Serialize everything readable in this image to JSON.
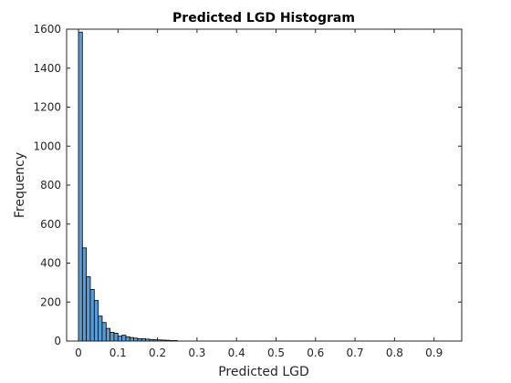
{
  "chart_data": {
    "type": "bar",
    "title": "Predicted LGD Histogram",
    "xlabel": "Predicted LGD",
    "ylabel": "Frequency",
    "xlim": [
      -0.03,
      0.97
    ],
    "ylim": [
      0,
      1600
    ],
    "xticks": [
      0,
      0.1,
      0.2,
      0.3,
      0.4,
      0.5,
      0.6,
      0.7,
      0.8,
      0.9
    ],
    "xtick_labels": [
      "0",
      "0.1",
      "0.2",
      "0.3",
      "0.4",
      "0.5",
      "0.6",
      "0.7",
      "0.8",
      "0.9"
    ],
    "yticks": [
      0,
      200,
      400,
      600,
      800,
      1000,
      1200,
      1400,
      1600
    ],
    "ytick_labels": [
      "0",
      "200",
      "400",
      "600",
      "800",
      "1000",
      "1200",
      "1400",
      "1600"
    ],
    "grid": false,
    "bar_color": "#5b9bd5",
    "edge_color": "#000000",
    "bins": {
      "start": 0,
      "width": 0.01,
      "counts": [
        1585,
        478,
        330,
        265,
        208,
        128,
        95,
        65,
        45,
        40,
        25,
        30,
        22,
        18,
        15,
        12,
        12,
        10,
        8,
        7,
        6,
        5,
        4,
        3,
        3
      ]
    }
  }
}
